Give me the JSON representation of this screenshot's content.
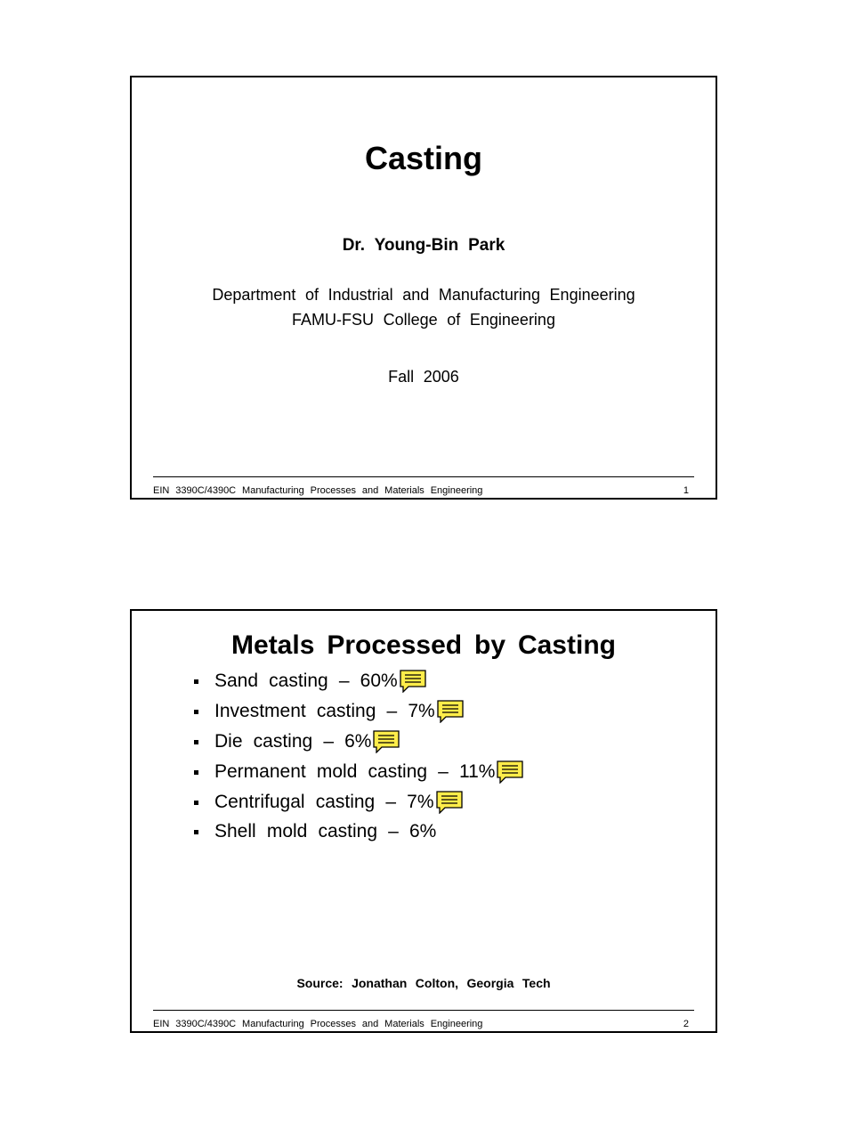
{
  "footer": {
    "course": "EIN 3390C/4390C Manufacturing Processes and Materials Engineering"
  },
  "slide1": {
    "title": "Casting",
    "author": "Dr.  Young-Bin  Park",
    "dept": "Department of Industrial and Manufacturing Engineering",
    "college": "FAMU-FSU College of Engineering",
    "term": "Fall 2006",
    "page": "1"
  },
  "slide2": {
    "title": "Metals  Processed  by  Casting",
    "items": [
      {
        "text": "Sand casting – 60%",
        "note": true
      },
      {
        "text": "Investment casting – 7%",
        "note": true
      },
      {
        "text": "Die casting – 6%",
        "note": true
      },
      {
        "text": "Permanent mold casting – 11%",
        "note": true
      },
      {
        "text": "Centrifugal casting – 7%",
        "note": true
      },
      {
        "text": "Shell mold casting – 6%",
        "note": false
      }
    ],
    "source": "Source: Jonathan Colton, Georgia Tech",
    "page": "2"
  },
  "noteIcon": {
    "fill": "#ffed4a",
    "stroke": "#000000",
    "width": 30,
    "height": 26
  }
}
